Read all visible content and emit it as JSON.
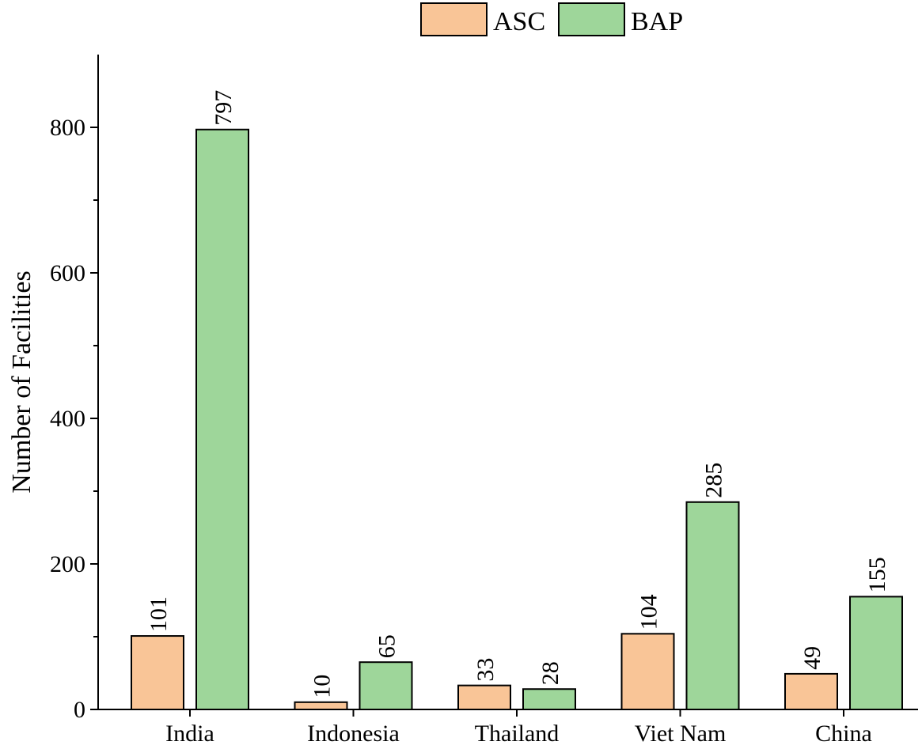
{
  "chart_data": {
    "type": "bar",
    "categories": [
      "India",
      "Indonesia",
      "Thailand",
      "Viet Nam",
      "China"
    ],
    "series": [
      {
        "name": "ASC",
        "color": "#F9C597",
        "values": [
          101,
          10,
          33,
          104,
          49
        ]
      },
      {
        "name": "BAP",
        "color": "#9ED69A",
        "values": [
          797,
          65,
          28,
          285,
          155
        ]
      }
    ],
    "xlabel": "",
    "ylabel": "Number of Facilities",
    "ylim": [
      0,
      900
    ],
    "yticks": [
      0,
      200,
      400,
      600,
      800
    ],
    "grid": false,
    "legend": "top",
    "data_labels": "rotated-above-bars"
  }
}
